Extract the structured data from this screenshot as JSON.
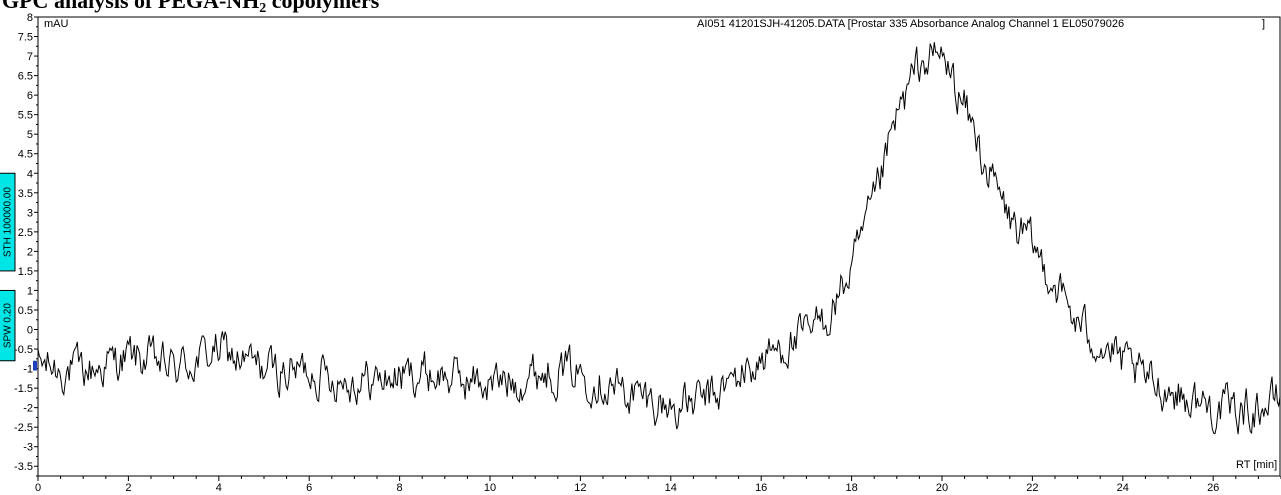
{
  "page": {
    "title": "GPC analysis of PEGA-NH",
    "title_subscript": "2",
    "title_suffix": " copolymers"
  },
  "chart_data": {
    "type": "line",
    "title": "GPC analysis of PEGA-NH2 copolymers",
    "ylabel": "mAU",
    "xlabel": "RT [min]",
    "file_label": "AI051 41201SJH-41205.DATA [Prostar 335 Absorbance Analog Channel 1 EL05079026",
    "file_label_bracket": "]",
    "xlim": [
      0,
      27.5
    ],
    "ylim": [
      -3.75,
      8
    ],
    "x_ticks": [
      0,
      2,
      4,
      6,
      8,
      10,
      12,
      14,
      16,
      18,
      20,
      22,
      24,
      26
    ],
    "x_tick_labels": [
      "0",
      "2",
      "4",
      "6",
      "8",
      "10",
      "12",
      "14",
      "16",
      "18",
      "20",
      "22",
      "24",
      "26"
    ],
    "y_ticks": [
      8,
      7.5,
      7,
      6.5,
      6,
      5.5,
      5,
      4.5,
      4,
      3.5,
      3,
      2.5,
      2,
      1.5,
      1,
      0.5,
      0,
      -0.5,
      -1,
      -1.5,
      -2,
      -2.5,
      -3,
      -3.5
    ],
    "y_tick_labels": [
      "8",
      "7.5",
      "7",
      "6.5",
      "6",
      "5.5",
      "5",
      "4.5",
      "4",
      "3.5",
      "3",
      "2.5",
      "2",
      "1.5",
      "1",
      "0.5",
      "0",
      "-0.5",
      "-1",
      "-1.5",
      "-2",
      "-2.5",
      "-3",
      "-3.5"
    ],
    "markers": [
      {
        "label": "STH 100000.00",
        "y_from": 1.5,
        "y_to": 4.0
      },
      {
        "label": "SPW 0.20",
        "y_from": -0.8,
        "y_to": 1.0
      }
    ],
    "series": [
      {
        "x": [
          0,
          0.5,
          1,
          1.5,
          2,
          2.5,
          3,
          3.5,
          4,
          4.5,
          5,
          5.5,
          6,
          6.5,
          7,
          7.5,
          8,
          8.5,
          9,
          9.5,
          10,
          10.5,
          11,
          11.5,
          12,
          12.5,
          13,
          13.5,
          14,
          14.5,
          15,
          15.5,
          16,
          16.5,
          17,
          17.5,
          18,
          18.5,
          19,
          19.5,
          20,
          20.5,
          21,
          21.5,
          22,
          22.5,
          23,
          23.5,
          24,
          24.5,
          25,
          25.5,
          26,
          26.5,
          27,
          27.5
        ],
        "y": [
          -0.9,
          -1.0,
          -1.1,
          -0.9,
          -0.7,
          -0.8,
          -1.0,
          -0.8,
          -0.5,
          -0.8,
          -1.0,
          -1.1,
          -1.0,
          -1.2,
          -1.3,
          -1.3,
          -1.2,
          -1.1,
          -1.2,
          -1.3,
          -1.4,
          -1.3,
          -1.1,
          -1.0,
          -1.1,
          -1.3,
          -1.6,
          -1.8,
          -2.0,
          -1.9,
          -1.7,
          -1.2,
          -0.8,
          -0.4,
          -0.2,
          0.4,
          1.5,
          3.2,
          5.4,
          6.8,
          7.0,
          5.7,
          4.1,
          2.8,
          2.1,
          1.2,
          0.1,
          -0.3,
          -0.9,
          -1.3,
          -1.5,
          -1.8,
          -2.0,
          -2.1,
          -2.0,
          -1.8
        ]
      }
    ]
  }
}
